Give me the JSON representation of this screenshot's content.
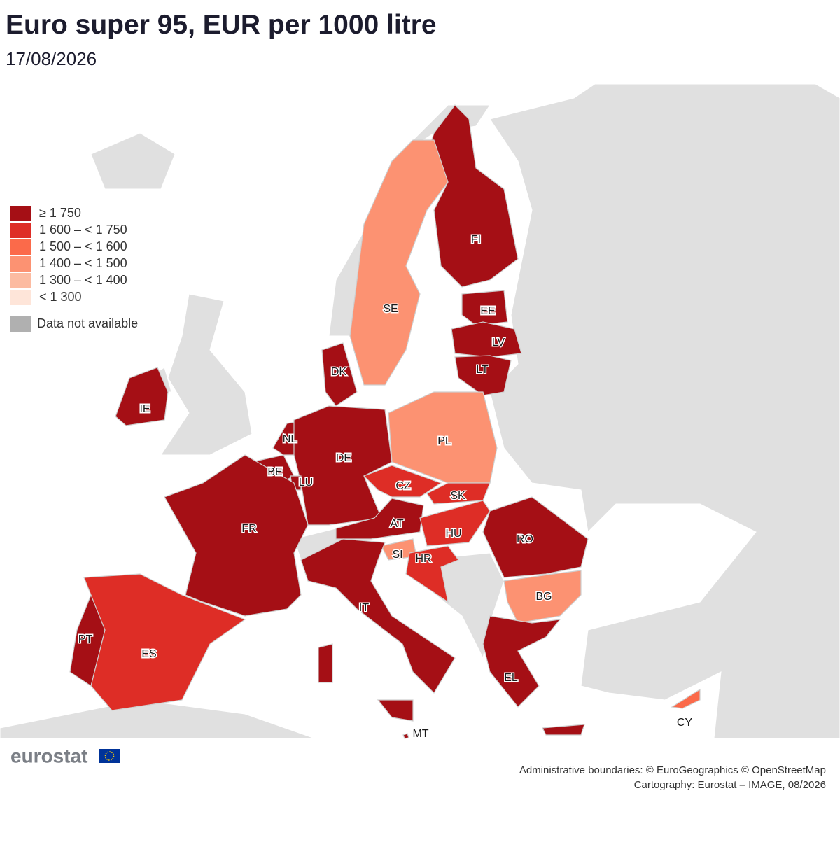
{
  "title": "Euro super 95, EUR per 1000 litre",
  "subtitle": "17/08/2026",
  "legend": [
    {
      "label": "≥ 1 750",
      "color": "#a50f15"
    },
    {
      "label": "1 600 – < 1 750",
      "color": "#de2d26"
    },
    {
      "label": "1 500 – < 1 600",
      "color": "#fb6a4a"
    },
    {
      "label": "1 400 – < 1 500",
      "color": "#fc9272"
    },
    {
      "label": "1 300 – < 1 400",
      "color": "#fcbba1"
    },
    {
      "label": "< 1 300",
      "color": "#fee5d9"
    },
    {
      "label": "Data not available",
      "color": "#b0b0b0"
    }
  ],
  "countries": [
    {
      "code": "FI",
      "class": 0
    },
    {
      "code": "SE",
      "class": 3
    },
    {
      "code": "EE",
      "class": 0
    },
    {
      "code": "LV",
      "class": 0
    },
    {
      "code": "LT",
      "class": 0
    },
    {
      "code": "DK",
      "class": 0
    },
    {
      "code": "IE",
      "class": 0
    },
    {
      "code": "NL",
      "class": 0
    },
    {
      "code": "DE",
      "class": 0
    },
    {
      "code": "PL",
      "class": 3
    },
    {
      "code": "BE",
      "class": 0
    },
    {
      "code": "LU",
      "class": 0
    },
    {
      "code": "CZ",
      "class": 1
    },
    {
      "code": "SK",
      "class": 1
    },
    {
      "code": "FR",
      "class": 0
    },
    {
      "code": "AT",
      "class": 0
    },
    {
      "code": "HU",
      "class": 1
    },
    {
      "code": "RO",
      "class": 0
    },
    {
      "code": "SI",
      "class": 3
    },
    {
      "code": "HR",
      "class": 1
    },
    {
      "code": "IT",
      "class": 0
    },
    {
      "code": "BG",
      "class": 3
    },
    {
      "code": "PT",
      "class": 0
    },
    {
      "code": "ES",
      "class": 1
    },
    {
      "code": "EL",
      "class": 0
    },
    {
      "code": "MT",
      "class": 0
    },
    {
      "code": "CY",
      "class": 2
    }
  ],
  "logo": "eurostat",
  "credits": [
    "Administrative boundaries: © EuroGeographics © OpenStreetMap",
    "Cartography: Eurostat – IMAGE, 08/2026"
  ]
}
